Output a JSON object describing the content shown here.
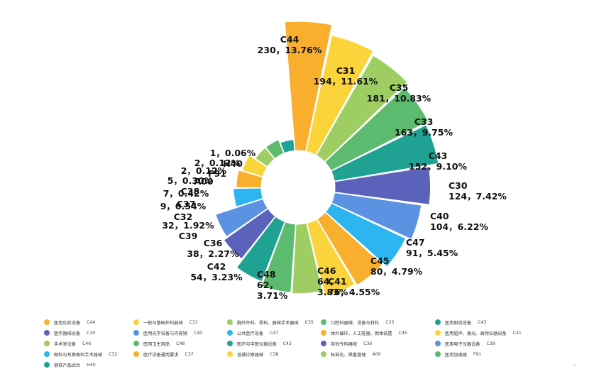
{
  "chart_data": {
    "type": "pie",
    "variant": "nightingale-rose",
    "title": "",
    "series": [
      {
        "code": "C44",
        "name": "医用化验设备",
        "value": 230,
        "percent": "13.76%",
        "color": "#F9AE2E",
        "label_line1": "C44",
        "label_line2": "230，13.76%"
      },
      {
        "code": "C31",
        "name": "一般与基础外科器械",
        "value": 194,
        "percent": "11.61%",
        "color": "#FBD43C",
        "label_line1": "C31",
        "label_line2": "194，11.61%"
      },
      {
        "code": "C35",
        "name": "胸外外科、骨科、器械手术器械",
        "value": 181,
        "percent": "10.83%",
        "color": "#9ECE63",
        "label_line1": "C35",
        "label_line2": "181，10.83%"
      },
      {
        "code": "C33",
        "name": "口腔科器械、设备与材料",
        "value": 163,
        "percent": "9.75%",
        "color": "#5CBB6E",
        "label_line1": "C33",
        "label_line2": "163，9.75%"
      },
      {
        "code": "C43",
        "name": "医用射线设备",
        "value": 152,
        "percent": "9.10%",
        "color": "#1FA293",
        "label_line1": "C43",
        "label_line2": "152，9.10%"
      },
      {
        "code": "C30",
        "name": "医疗器械设备",
        "value": 124,
        "percent": "7.42%",
        "color": "#5A62BB",
        "label_line1": "C30",
        "label_line2": "124，7.42%"
      },
      {
        "code": "C40",
        "name": "医用光学设备与内窥镜",
        "value": 104,
        "percent": "6.22%",
        "color": "#5B92E2",
        "label_line1": "C40",
        "label_line2": "104，6.22%"
      },
      {
        "code": "C47",
        "name": "公共医疗设备",
        "value": 91,
        "percent": "5.45%",
        "color": "#2CB5EF",
        "label_line1": "C47",
        "label_line2": "91，5.45%"
      },
      {
        "code": "C45",
        "name": "体外循环、人工脏器、假体装置",
        "value": 80,
        "percent": "4.79%",
        "color": "#F9AE2E",
        "label_line1": "C45",
        "label_line2": "80，4.79%"
      },
      {
        "code": "C41",
        "name": "医用超声、激光、高频仪器设备",
        "value": 76,
        "percent": "4.55%",
        "color": "#FBD43C",
        "label_line1": "C41",
        "label_line2": "76，4.55%"
      },
      {
        "code": "C46",
        "name": "手术室设备",
        "value": 64,
        "percent": "3.83%",
        "color": "#9ECE63",
        "label_line1": "C46",
        "label_line2": "64，",
        "label_line3": "3.83%"
      },
      {
        "code": "C48",
        "name": "医用卫生用品",
        "value": 62,
        "percent": "3.71%",
        "color": "#5CBB6E",
        "label_line1": "C48",
        "label_line2": "62，",
        "label_line3": "3.71%"
      },
      {
        "code": "C42",
        "name": "医疗与中医仪器设备",
        "value": 54,
        "percent": "3.23%",
        "color": "#1FA293",
        "label_line1": "C42",
        "label_line2": "54，3.23%"
      },
      {
        "code": "C36",
        "name": "其他专科器械",
        "value": 38,
        "percent": "2.27%",
        "color": "#5A62BB",
        "label_line1": "C36",
        "label_line2": "38，2.27%"
      },
      {
        "code": "C39",
        "name": "医用电子仪器设备",
        "value": 32,
        "percent": "1.92%",
        "color": "#5B92E2",
        "label_line1": "32，1.92%",
        "label_line2": "C39"
      },
      {
        "code": "C32",
        "name": "眼科与耳鼻喉科手术器械",
        "value": 9,
        "percent": "0.54%",
        "color": "#2CB5EF",
        "label_line1": "9，0.54%",
        "label_line2": "C32"
      },
      {
        "code": "C37",
        "name": "医疗设备通用要求",
        "value": 7,
        "percent": "0.42%",
        "color": "#F9AE2E",
        "label_line1": "7，0.42%",
        "label_line2": "C37"
      },
      {
        "code": "C38",
        "name": "普通诊察器械",
        "value": 5,
        "percent": "0.30%",
        "color": "#FBD43C",
        "label_line1": "5，0.30%",
        "label_line2": "C38"
      },
      {
        "code": "A00",
        "name": "标准化、质量管理",
        "value": 2,
        "percent": "0.12%",
        "color": "#9ECE63",
        "label_line1": "2，0.12%",
        "label_line2": "A00"
      },
      {
        "code": "F91",
        "name": "医用加速器",
        "value": 2,
        "percent": "0.12%",
        "color": "#5CBB6E",
        "label_line1": "2，0.12%",
        "label_line2": "F91"
      },
      {
        "code": "H40",
        "name": "钢铁产品综合",
        "value": 1,
        "percent": "0.06%",
        "color": "#1FA293",
        "label_line1": "1，0.06%",
        "label_line2": "H40"
      }
    ]
  }
}
